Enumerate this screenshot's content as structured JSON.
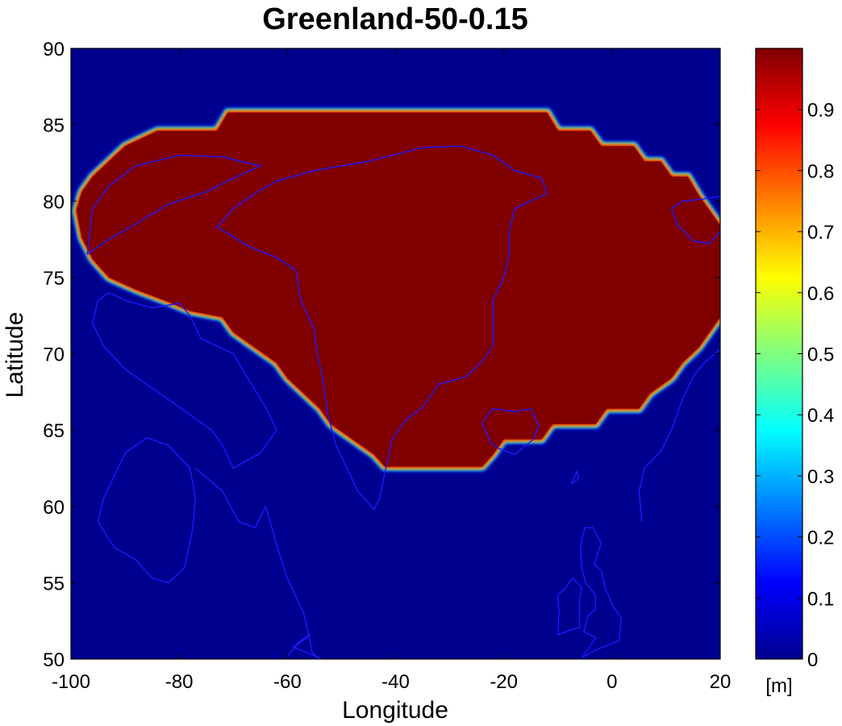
{
  "title": "Greenland-50-0.15",
  "colors": {
    "ocean": "#00008f",
    "mask": "#800000",
    "coast": "#1a1aff",
    "frame": "#000000"
  },
  "map": {
    "lon_range": [
      -100,
      20
    ],
    "lat_range": [
      50,
      90
    ],
    "xlabel": "Longitude",
    "ylabel": "Latitude",
    "x_ticks": [
      -100,
      -80,
      -60,
      -40,
      -20,
      0,
      20
    ],
    "y_ticks": [
      90,
      85,
      80,
      75,
      70,
      65,
      60,
      55,
      50
    ],
    "x_tick_labels": [
      "-100",
      "-80",
      "-60",
      "-40",
      "-20",
      "0",
      "20"
    ],
    "y_tick_labels": [
      "90",
      "85",
      "80",
      "75",
      "70",
      "65",
      "60",
      "55",
      "50"
    ],
    "mask_value": 1.0,
    "mask_region_lonlat": [
      [
        -71,
        85.8
      ],
      [
        -12,
        85.8
      ],
      [
        -10,
        84.6
      ],
      [
        -4,
        84.6
      ],
      [
        -2,
        83.6
      ],
      [
        4,
        83.6
      ],
      [
        6,
        82.6
      ],
      [
        9,
        82.6
      ],
      [
        11,
        81.6
      ],
      [
        14,
        81.6
      ],
      [
        16,
        80.4
      ],
      [
        18,
        79.4
      ],
      [
        20,
        78.4
      ],
      [
        20,
        72.4
      ],
      [
        18,
        71.4
      ],
      [
        16,
        70.4
      ],
      [
        13,
        69.4
      ],
      [
        11,
        68.4
      ],
      [
        7,
        67.4
      ],
      [
        5,
        66.4
      ],
      [
        -1,
        66.4
      ],
      [
        -3,
        65.4
      ],
      [
        -11,
        65.4
      ],
      [
        -13,
        64.4
      ],
      [
        -20,
        64.4
      ],
      [
        -22,
        63.4
      ],
      [
        -24,
        62.6
      ],
      [
        -42,
        62.6
      ],
      [
        -44,
        63.4
      ],
      [
        -48,
        64.4
      ],
      [
        -52,
        65.4
      ],
      [
        -54,
        66.4
      ],
      [
        -57,
        67.4
      ],
      [
        -60,
        68.4
      ],
      [
        -62,
        69.4
      ],
      [
        -66,
        70.4
      ],
      [
        -70,
        71.4
      ],
      [
        -72,
        72.4
      ],
      [
        -78,
        72.8
      ],
      [
        -82,
        73.4
      ],
      [
        -88,
        74.2
      ],
      [
        -93,
        75.0
      ],
      [
        -96,
        76.2
      ],
      [
        -98,
        77.6
      ],
      [
        -99,
        79.4
      ],
      [
        -98,
        80.6
      ],
      [
        -96,
        81.6
      ],
      [
        -93,
        82.6
      ],
      [
        -90,
        83.6
      ],
      [
        -84,
        84.6
      ],
      [
        -73,
        84.6
      ]
    ]
  },
  "colorbar": {
    "range": [
      0,
      1
    ],
    "tick_values": [
      0,
      0.1,
      0.2,
      0.3,
      0.4,
      0.5,
      0.6,
      0.7,
      0.8,
      0.9
    ],
    "tick_labels": [
      "0",
      "0.1",
      "0.2",
      "0.3",
      "0.4",
      "0.5",
      "0.6",
      "0.7",
      "0.8",
      "0.9"
    ],
    "unit_label": "[m]",
    "colormap": "jet"
  },
  "coastlines_lonlat": [
    {
      "name": "greenland-coast",
      "points": [
        [
          -44,
          59.8
        ],
        [
          -47,
          61
        ],
        [
          -49,
          62.5
        ],
        [
          -51,
          64
        ],
        [
          -52.5,
          66
        ],
        [
          -53.5,
          68.5
        ],
        [
          -54.5,
          70
        ],
        [
          -55,
          71.5
        ],
        [
          -57.5,
          73.5
        ],
        [
          -58.5,
          75.5
        ],
        [
          -62,
          76.3
        ],
        [
          -67,
          77
        ],
        [
          -73,
          78.3
        ],
        [
          -70,
          79.5
        ],
        [
          -66,
          80.5
        ],
        [
          -62,
          81.3
        ],
        [
          -55,
          82
        ],
        [
          -45,
          82.6
        ],
        [
          -35,
          83.5
        ],
        [
          -28,
          83.6
        ],
        [
          -22,
          83
        ],
        [
          -18,
          82
        ],
        [
          -13,
          81.5
        ],
        [
          -12,
          80.5
        ],
        [
          -18,
          79.5
        ],
        [
          -19,
          78
        ],
        [
          -19,
          76.5
        ],
        [
          -20,
          75
        ],
        [
          -22,
          73.5
        ],
        [
          -22,
          72
        ],
        [
          -22,
          70.5
        ],
        [
          -24,
          69.5
        ],
        [
          -27,
          68.5
        ],
        [
          -32,
          68
        ],
        [
          -35,
          66.5
        ],
        [
          -38,
          65.7
        ],
        [
          -40.5,
          64.5
        ],
        [
          -41.5,
          63
        ],
        [
          -43,
          60.5
        ],
        [
          -44,
          59.8
        ]
      ]
    },
    {
      "name": "iceland-coast",
      "points": [
        [
          -24,
          65.5
        ],
        [
          -22,
          66.4
        ],
        [
          -18,
          66.2
        ],
        [
          -15,
          66.4
        ],
        [
          -13.5,
          65.3
        ],
        [
          -14.5,
          64.4
        ],
        [
          -18,
          63.4
        ],
        [
          -21,
          63.8
        ],
        [
          -22.5,
          64.2
        ],
        [
          -24,
          65.5
        ]
      ]
    },
    {
      "name": "baffin-coast",
      "points": [
        [
          -93,
          74
        ],
        [
          -90,
          73.5
        ],
        [
          -85,
          73
        ],
        [
          -80,
          73.3
        ],
        [
          -78,
          72.5
        ],
        [
          -76,
          71
        ],
        [
          -70,
          70
        ],
        [
          -67.5,
          68.5
        ],
        [
          -64,
          66.5
        ],
        [
          -62,
          65
        ],
        [
          -65,
          63.5
        ],
        [
          -70,
          62.5
        ],
        [
          -72,
          64
        ],
        [
          -74,
          65
        ],
        [
          -78,
          66
        ],
        [
          -82,
          67
        ],
        [
          -86,
          68
        ],
        [
          -90,
          69
        ],
        [
          -94,
          70.5
        ],
        [
          -96,
          72
        ],
        [
          -95,
          73.5
        ],
        [
          -93,
          74
        ]
      ]
    },
    {
      "name": "ellesmere-coast",
      "points": [
        [
          -97,
          76.5
        ],
        [
          -93,
          77.5
        ],
        [
          -88,
          78.5
        ],
        [
          -82,
          79.8
        ],
        [
          -75,
          80.6
        ],
        [
          -70,
          81.5
        ],
        [
          -65,
          82.3
        ],
        [
          -72,
          82.9
        ],
        [
          -80,
          83
        ],
        [
          -88,
          82.3
        ],
        [
          -93,
          81
        ],
        [
          -96,
          79.5
        ],
        [
          -97,
          76.5
        ]
      ]
    },
    {
      "name": "hudson-bay-coast",
      "points": [
        [
          -95,
          59
        ],
        [
          -94,
          60.5
        ],
        [
          -92,
          62
        ],
        [
          -90,
          63.5
        ],
        [
          -86,
          64.5
        ],
        [
          -82,
          64
        ],
        [
          -78,
          62.5
        ],
        [
          -77,
          60.5
        ],
        [
          -77.5,
          58.5
        ],
        [
          -79,
          56
        ],
        [
          -82,
          55
        ],
        [
          -85,
          55.3
        ],
        [
          -88,
          56.5
        ],
        [
          -92,
          57.3
        ],
        [
          -95,
          59
        ]
      ]
    },
    {
      "name": "labrador-coast",
      "points": [
        [
          -77,
          62.5
        ],
        [
          -72,
          61
        ],
        [
          -69,
          59
        ],
        [
          -66,
          58.6
        ],
        [
          -64,
          60
        ],
        [
          -62,
          57.5
        ],
        [
          -60,
          55.3
        ],
        [
          -57,
          53
        ],
        [
          -56,
          51.5
        ],
        [
          -58,
          51
        ],
        [
          -60,
          50.2
        ]
      ]
    },
    {
      "name": "svalbard-coast",
      "points": [
        [
          12,
          78.5
        ],
        [
          11,
          79.5
        ],
        [
          13,
          80
        ],
        [
          16,
          80.1
        ],
        [
          20,
          80.3
        ],
        [
          20,
          78
        ],
        [
          18,
          77.2
        ],
        [
          15,
          77.4
        ],
        [
          12,
          78.5
        ]
      ]
    },
    {
      "name": "norway-coast",
      "points": [
        [
          5.5,
          59
        ],
        [
          5,
          61
        ],
        [
          6,
          62.5
        ],
        [
          9,
          63.6
        ],
        [
          11,
          65
        ],
        [
          13,
          67
        ],
        [
          15,
          68.5
        ],
        [
          17,
          69.4
        ],
        [
          19,
          70
        ],
        [
          20,
          70.3
        ]
      ]
    },
    {
      "name": "britain-coast",
      "points": [
        [
          -5.5,
          50.1
        ],
        [
          -3,
          50.6
        ],
        [
          1.3,
          51.2
        ],
        [
          1.7,
          52.7
        ],
        [
          0.3,
          53.4
        ],
        [
          -1.2,
          54.6
        ],
        [
          -2,
          55.8
        ],
        [
          -3.3,
          56.2
        ],
        [
          -2,
          57.6
        ],
        [
          -3.5,
          58.6
        ],
        [
          -5,
          58.6
        ],
        [
          -5.8,
          57.5
        ],
        [
          -5.6,
          56
        ],
        [
          -4.9,
          55
        ],
        [
          -3.1,
          54.2
        ],
        [
          -3,
          53.3
        ],
        [
          -4.5,
          52.8
        ],
        [
          -5.2,
          51.8
        ],
        [
          -3,
          51.4
        ],
        [
          -5.5,
          50.1
        ]
      ]
    },
    {
      "name": "ireland-coast",
      "points": [
        [
          -10,
          51.6
        ],
        [
          -6,
          52.1
        ],
        [
          -6,
          53.9
        ],
        [
          -5.6,
          54.7
        ],
        [
          -7.3,
          55.3
        ],
        [
          -8.5,
          54.7
        ],
        [
          -10,
          54.2
        ],
        [
          -9.8,
          53
        ],
        [
          -10,
          51.6
        ]
      ]
    },
    {
      "name": "faroe-coast",
      "points": [
        [
          -7.5,
          61.5
        ],
        [
          -6.5,
          62.3
        ],
        [
          -6.2,
          61.8
        ],
        [
          -7.5,
          61.5
        ]
      ]
    },
    {
      "name": "newfoundland-coast",
      "points": [
        [
          -59,
          50.8
        ],
        [
          -56,
          51.6
        ],
        [
          -55.5,
          50.5
        ],
        [
          -53,
          49.5
        ],
        [
          -53.5,
          50
        ],
        [
          -59,
          50.8
        ]
      ]
    }
  ]
}
